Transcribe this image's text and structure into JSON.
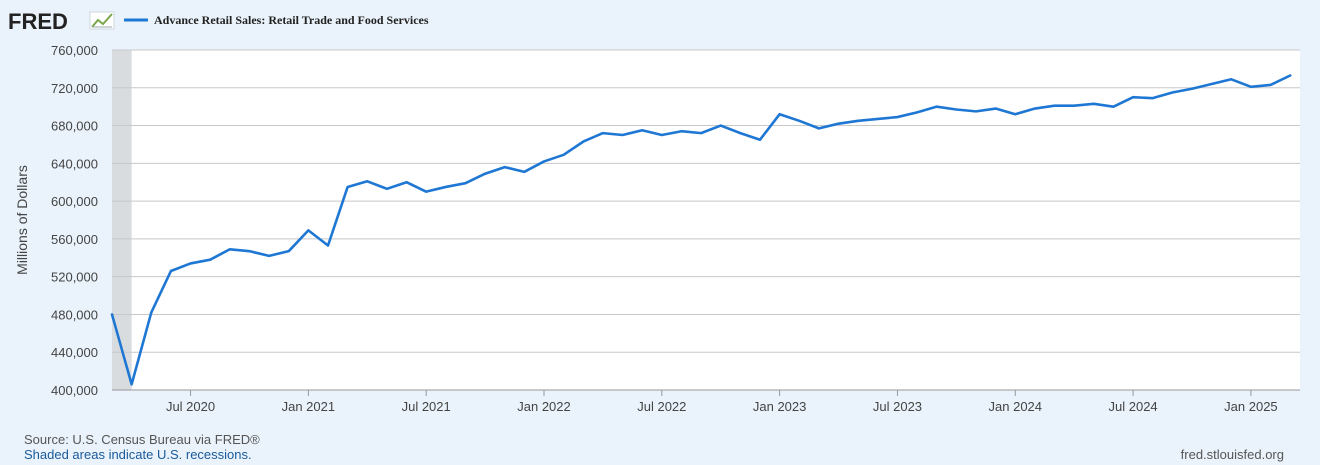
{
  "logo": {
    "text": "FRED",
    "icon": "fred-graph-icon"
  },
  "colors": {
    "series": "#1f77d4",
    "recession": "#d9dcdf",
    "grid": "#c8c8c8",
    "plot_bg": "#ffffff",
    "page_bg": "#eaf3fb"
  },
  "footer": {
    "source": "Source: U.S. Census Bureau via FRED®",
    "recession_note": "Shaded areas indicate U.S. recessions.",
    "site": "fred.stlouisfed.org"
  },
  "chart_data": {
    "type": "line",
    "title": "",
    "legend": [
      "Advance Retail Sales: Retail Trade and Food Services"
    ],
    "legend_position": "top-left",
    "xlabel": "",
    "ylabel": "Millions of Dollars",
    "ylim": [
      400000,
      760000
    ],
    "yticks": [
      400000,
      440000,
      480000,
      520000,
      560000,
      600000,
      640000,
      680000,
      720000,
      760000
    ],
    "ytick_labels": [
      "400,000",
      "440,000",
      "480,000",
      "520,000",
      "560,000",
      "600,000",
      "640,000",
      "680,000",
      "720,000",
      "760,000"
    ],
    "xlim_months": [
      0,
      60.5
    ],
    "xticks": [
      {
        "label": "Jul 2020",
        "m": 4
      },
      {
        "label": "Jan 2021",
        "m": 10
      },
      {
        "label": "Jul 2021",
        "m": 16
      },
      {
        "label": "Jan 2022",
        "m": 22
      },
      {
        "label": "Jul 2022",
        "m": 28
      },
      {
        "label": "Jan 2023",
        "m": 34
      },
      {
        "label": "Jul 2023",
        "m": 40
      },
      {
        "label": "Jan 2024",
        "m": 46
      },
      {
        "label": "Jul 2024",
        "m": 52
      },
      {
        "label": "Jan 2025",
        "m": 58
      }
    ],
    "recession": {
      "start": 0,
      "end": 1
    },
    "grid": true,
    "series": [
      {
        "name": "Advance Retail Sales: Retail Trade and Food Services",
        "x_start": "Mar 2020",
        "values": [
          480000,
          406000,
          482000,
          526000,
          534000,
          538000,
          549000,
          547000,
          542000,
          547000,
          569000,
          553000,
          615000,
          621000,
          613000,
          620000,
          610000,
          615000,
          619000,
          629000,
          636000,
          631000,
          642000,
          649000,
          663000,
          672000,
          670000,
          675000,
          670000,
          674000,
          672000,
          680000,
          672000,
          665000,
          692000,
          685000,
          677000,
          682000,
          685000,
          687000,
          689000,
          694000,
          700000,
          697000,
          695000,
          698000,
          692000,
          698000,
          701000,
          701000,
          703000,
          700000,
          710000,
          709000,
          715000,
          719000,
          724000,
          729000,
          721000,
          723000,
          733000
        ]
      }
    ]
  }
}
